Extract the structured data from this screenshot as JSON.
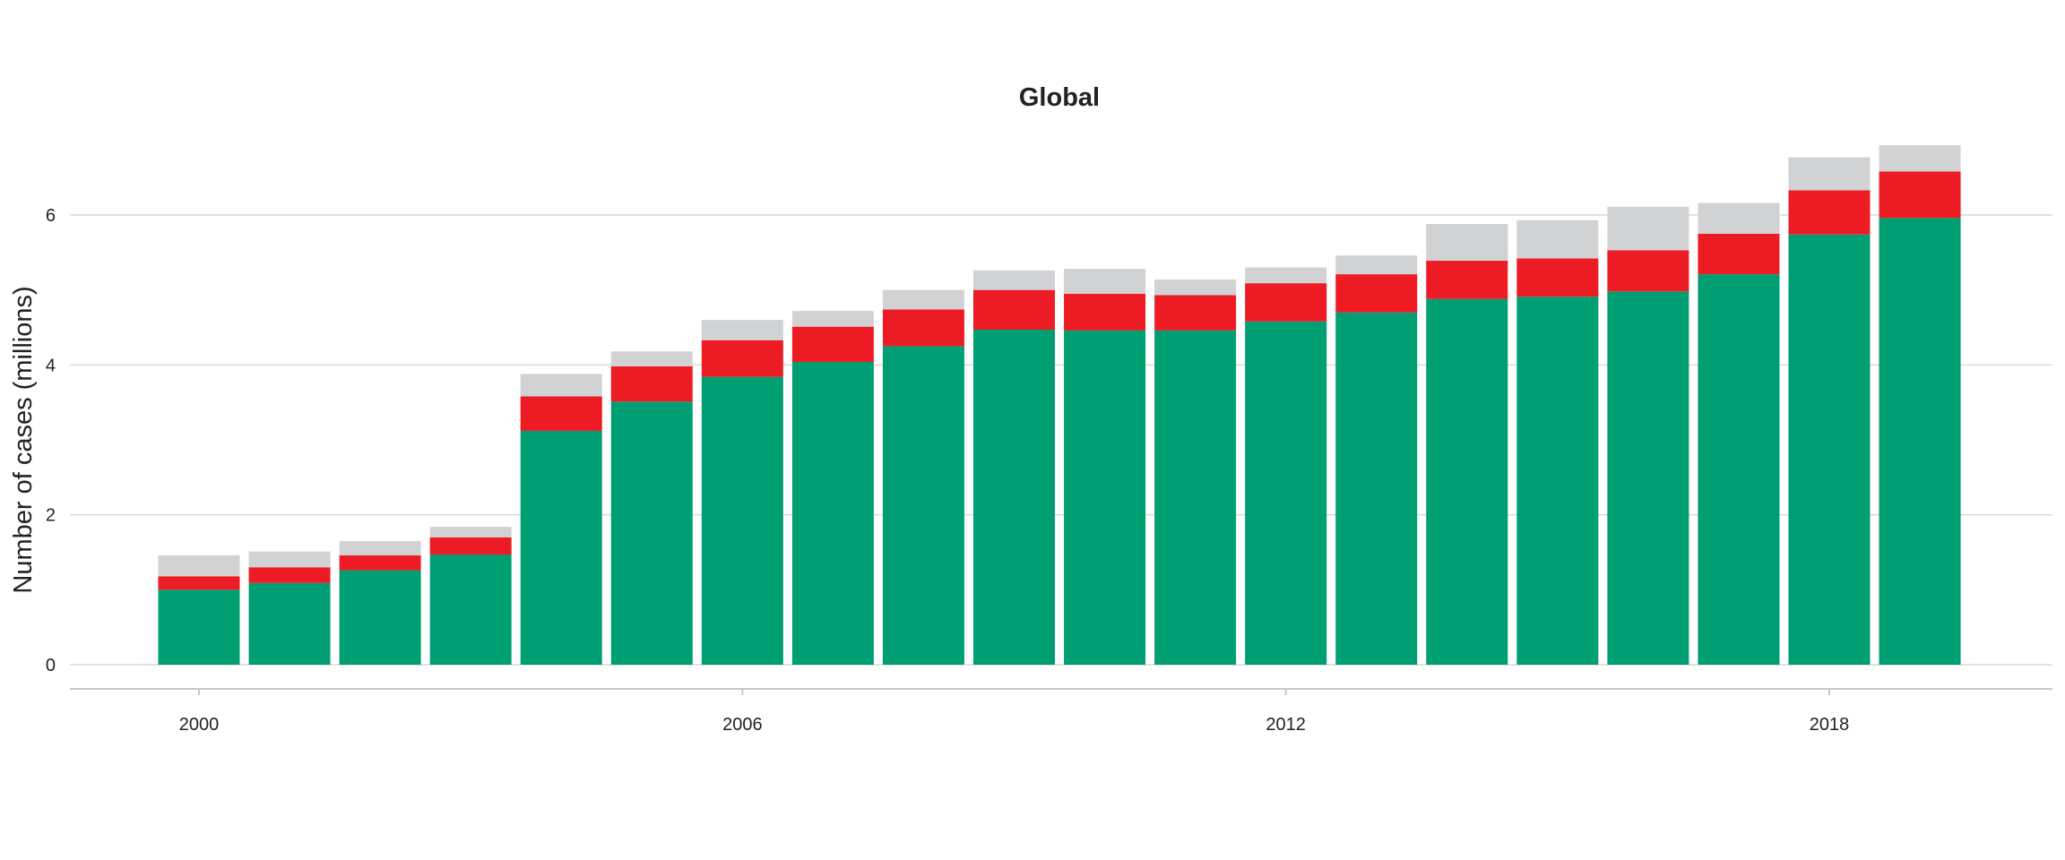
{
  "chart_data": {
    "type": "bar",
    "stacked": true,
    "title": "Global",
    "xlabel": "",
    "ylabel": "Number of cases (millions)",
    "ylim": [
      0,
      7
    ],
    "yticks": [
      0,
      2,
      4,
      6
    ],
    "xticks": [
      2000,
      2006,
      2012,
      2018
    ],
    "grid": "horizontal",
    "legend": "none",
    "categories": [
      2000,
      2001,
      2002,
      2003,
      2004,
      2005,
      2006,
      2007,
      2008,
      2009,
      2010,
      2011,
      2012,
      2013,
      2014,
      2015,
      2016,
      2017,
      2018,
      2019
    ],
    "series": [
      {
        "color": "#009E73",
        "values": [
          1.0,
          1.09,
          1.26,
          1.47,
          3.12,
          3.51,
          3.84,
          4.04,
          4.25,
          4.47,
          4.46,
          4.46,
          4.58,
          4.7,
          4.88,
          4.91,
          4.98,
          5.21,
          5.74,
          5.96
        ]
      },
      {
        "color": "#ED1C24",
        "values": [
          0.18,
          0.21,
          0.2,
          0.23,
          0.46,
          0.47,
          0.49,
          0.47,
          0.49,
          0.53,
          0.49,
          0.47,
          0.51,
          0.51,
          0.51,
          0.51,
          0.55,
          0.54,
          0.59,
          0.62
        ]
      },
      {
        "color": "#D1D2D4",
        "values": [
          0.28,
          0.21,
          0.19,
          0.14,
          0.3,
          0.2,
          0.27,
          0.21,
          0.26,
          0.26,
          0.33,
          0.21,
          0.21,
          0.25,
          0.49,
          0.51,
          0.58,
          0.41,
          0.44,
          0.35
        ]
      }
    ]
  }
}
